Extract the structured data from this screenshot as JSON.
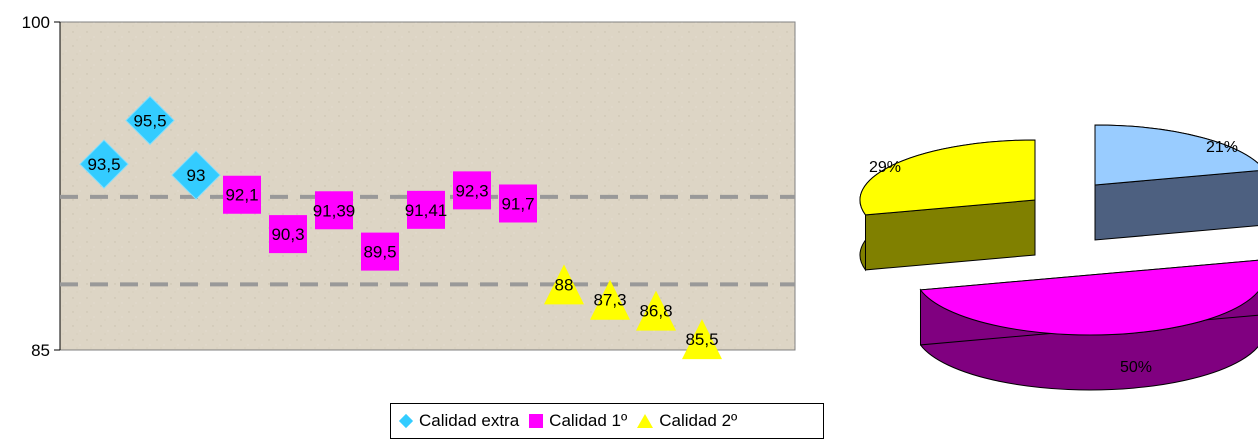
{
  "chart_data": [
    {
      "type": "scatter",
      "ylim": [
        85,
        100
      ],
      "y_ticks": [
        "100",
        "85"
      ],
      "grid": false,
      "reference_lines": [
        92,
        88
      ],
      "legend_position": "bottom",
      "colors": {
        "Calidad extra": "#33ccff",
        "Calidad 1º": "#ff00ff",
        "Calidad 2º": "#ffff00",
        "background": "#ddd5c5",
        "reference_line": "#999999"
      },
      "series": [
        {
          "name": "Calidad extra",
          "marker": "diamond",
          "x": [
            1,
            2,
            3
          ],
          "values": [
            93.5,
            95.5,
            93
          ],
          "labels": [
            "93,5",
            "95,5",
            "93"
          ]
        },
        {
          "name": "Calidad 1º",
          "marker": "square",
          "x": [
            4,
            5,
            6,
            7,
            8,
            9,
            10
          ],
          "values": [
            92.1,
            90.3,
            91.39,
            89.5,
            91.41,
            92.3,
            91.7
          ],
          "labels": [
            "92,1",
            "90,3",
            "91,39",
            "89,5",
            "91,41",
            "92,3",
            "91,7"
          ]
        },
        {
          "name": "Calidad 2º",
          "marker": "triangle",
          "x": [
            11,
            12,
            13,
            14
          ],
          "values": [
            88,
            87.3,
            86.8,
            85.5
          ],
          "labels": [
            "88",
            "87,3",
            "86,8",
            "85,5"
          ]
        }
      ]
    },
    {
      "type": "pie",
      "style": "3d-exploded",
      "slices": [
        {
          "value": 21,
          "label": "21%",
          "color": "#99ccff",
          "side_color": "#4d6080"
        },
        {
          "value": 50,
          "label": "50%",
          "color": "#ff00ff",
          "side_color": "#800080"
        },
        {
          "value": 29,
          "label": "29%",
          "color": "#ffff00",
          "side_color": "#808000"
        }
      ]
    }
  ],
  "legend": {
    "items": [
      {
        "label": "Calidad extra",
        "marker": "diamond",
        "color": "#33ccff"
      },
      {
        "label": "Calidad 1º",
        "marker": "square",
        "color": "#ff00ff"
      },
      {
        "label": "Calidad 2º",
        "marker": "triangle",
        "color": "#ffff00"
      }
    ]
  }
}
